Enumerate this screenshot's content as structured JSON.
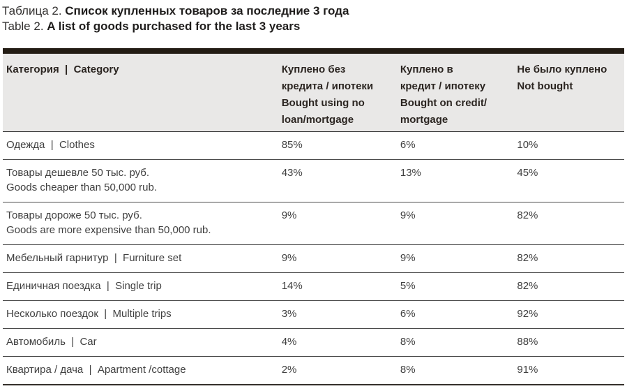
{
  "caption": {
    "ru_prefix": "Таблица 2. ",
    "ru_title": "Список купленных товаров за последние 3 года",
    "en_prefix": "Table 2. ",
    "en_title": "A list of goods purchased for the last 3 years"
  },
  "table": {
    "headers": [
      "Категория  |  Category",
      "Куплено без\nкредита / ипотеки\nBought using no\nloan/mortgage",
      "Куплено в\nкредит / ипотеку\nBought on credit/\nmortgage",
      "Не было куплено\nNot bought"
    ],
    "rows": [
      {
        "category": "Одежда  |  Clothes",
        "values": [
          "85%",
          "6%",
          "10%"
        ]
      },
      {
        "category": "Товары дешевле 50 тыс. руб.\nGoods cheaper than 50,000 rub.",
        "values": [
          "43%",
          "13%",
          "45%"
        ]
      },
      {
        "category": "Товары дороже 50 тыс. руб.\nGoods are more expensive than 50,000 rub.",
        "values": [
          "9%",
          "9%",
          "82%"
        ]
      },
      {
        "category": "Мебельный гарнитур  |  Furniture set",
        "values": [
          "9%",
          "9%",
          "82%"
        ]
      },
      {
        "category": "Единичная поездка  |  Single trip",
        "values": [
          "14%",
          "5%",
          "82%"
        ]
      },
      {
        "category": "Несколько поездок  |  Multiple trips",
        "values": [
          "3%",
          "6%",
          "92%"
        ]
      },
      {
        "category": "Автомобиль  |  Car",
        "values": [
          "4%",
          "8%",
          "88%"
        ]
      },
      {
        "category": "Квартира / дача  |  Apartment /cottage",
        "values": [
          "2%",
          "8%",
          "91%"
        ]
      }
    ]
  },
  "colors": {
    "top_bar": "#231c14",
    "header_background": "#e9e8e7",
    "header_text": "#2b2521",
    "body_text": "#404040",
    "row_separator": "#4a4a4a",
    "bottom_border": "#35302b"
  }
}
